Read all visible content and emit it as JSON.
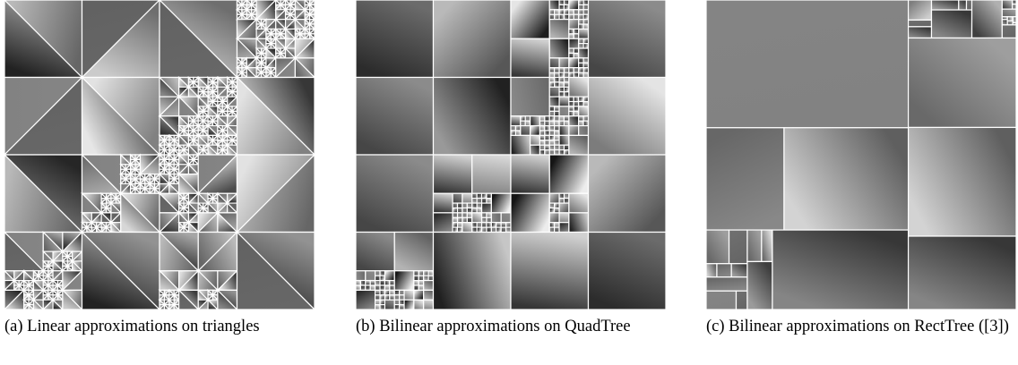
{
  "figures": [
    {
      "caption": "(a) Linear approximations on triangles"
    },
    {
      "caption": "(b) Bilinear approximations on QuadTree"
    },
    {
      "caption": "(c) Bilinear approximations on RectTree ([3])"
    }
  ]
}
